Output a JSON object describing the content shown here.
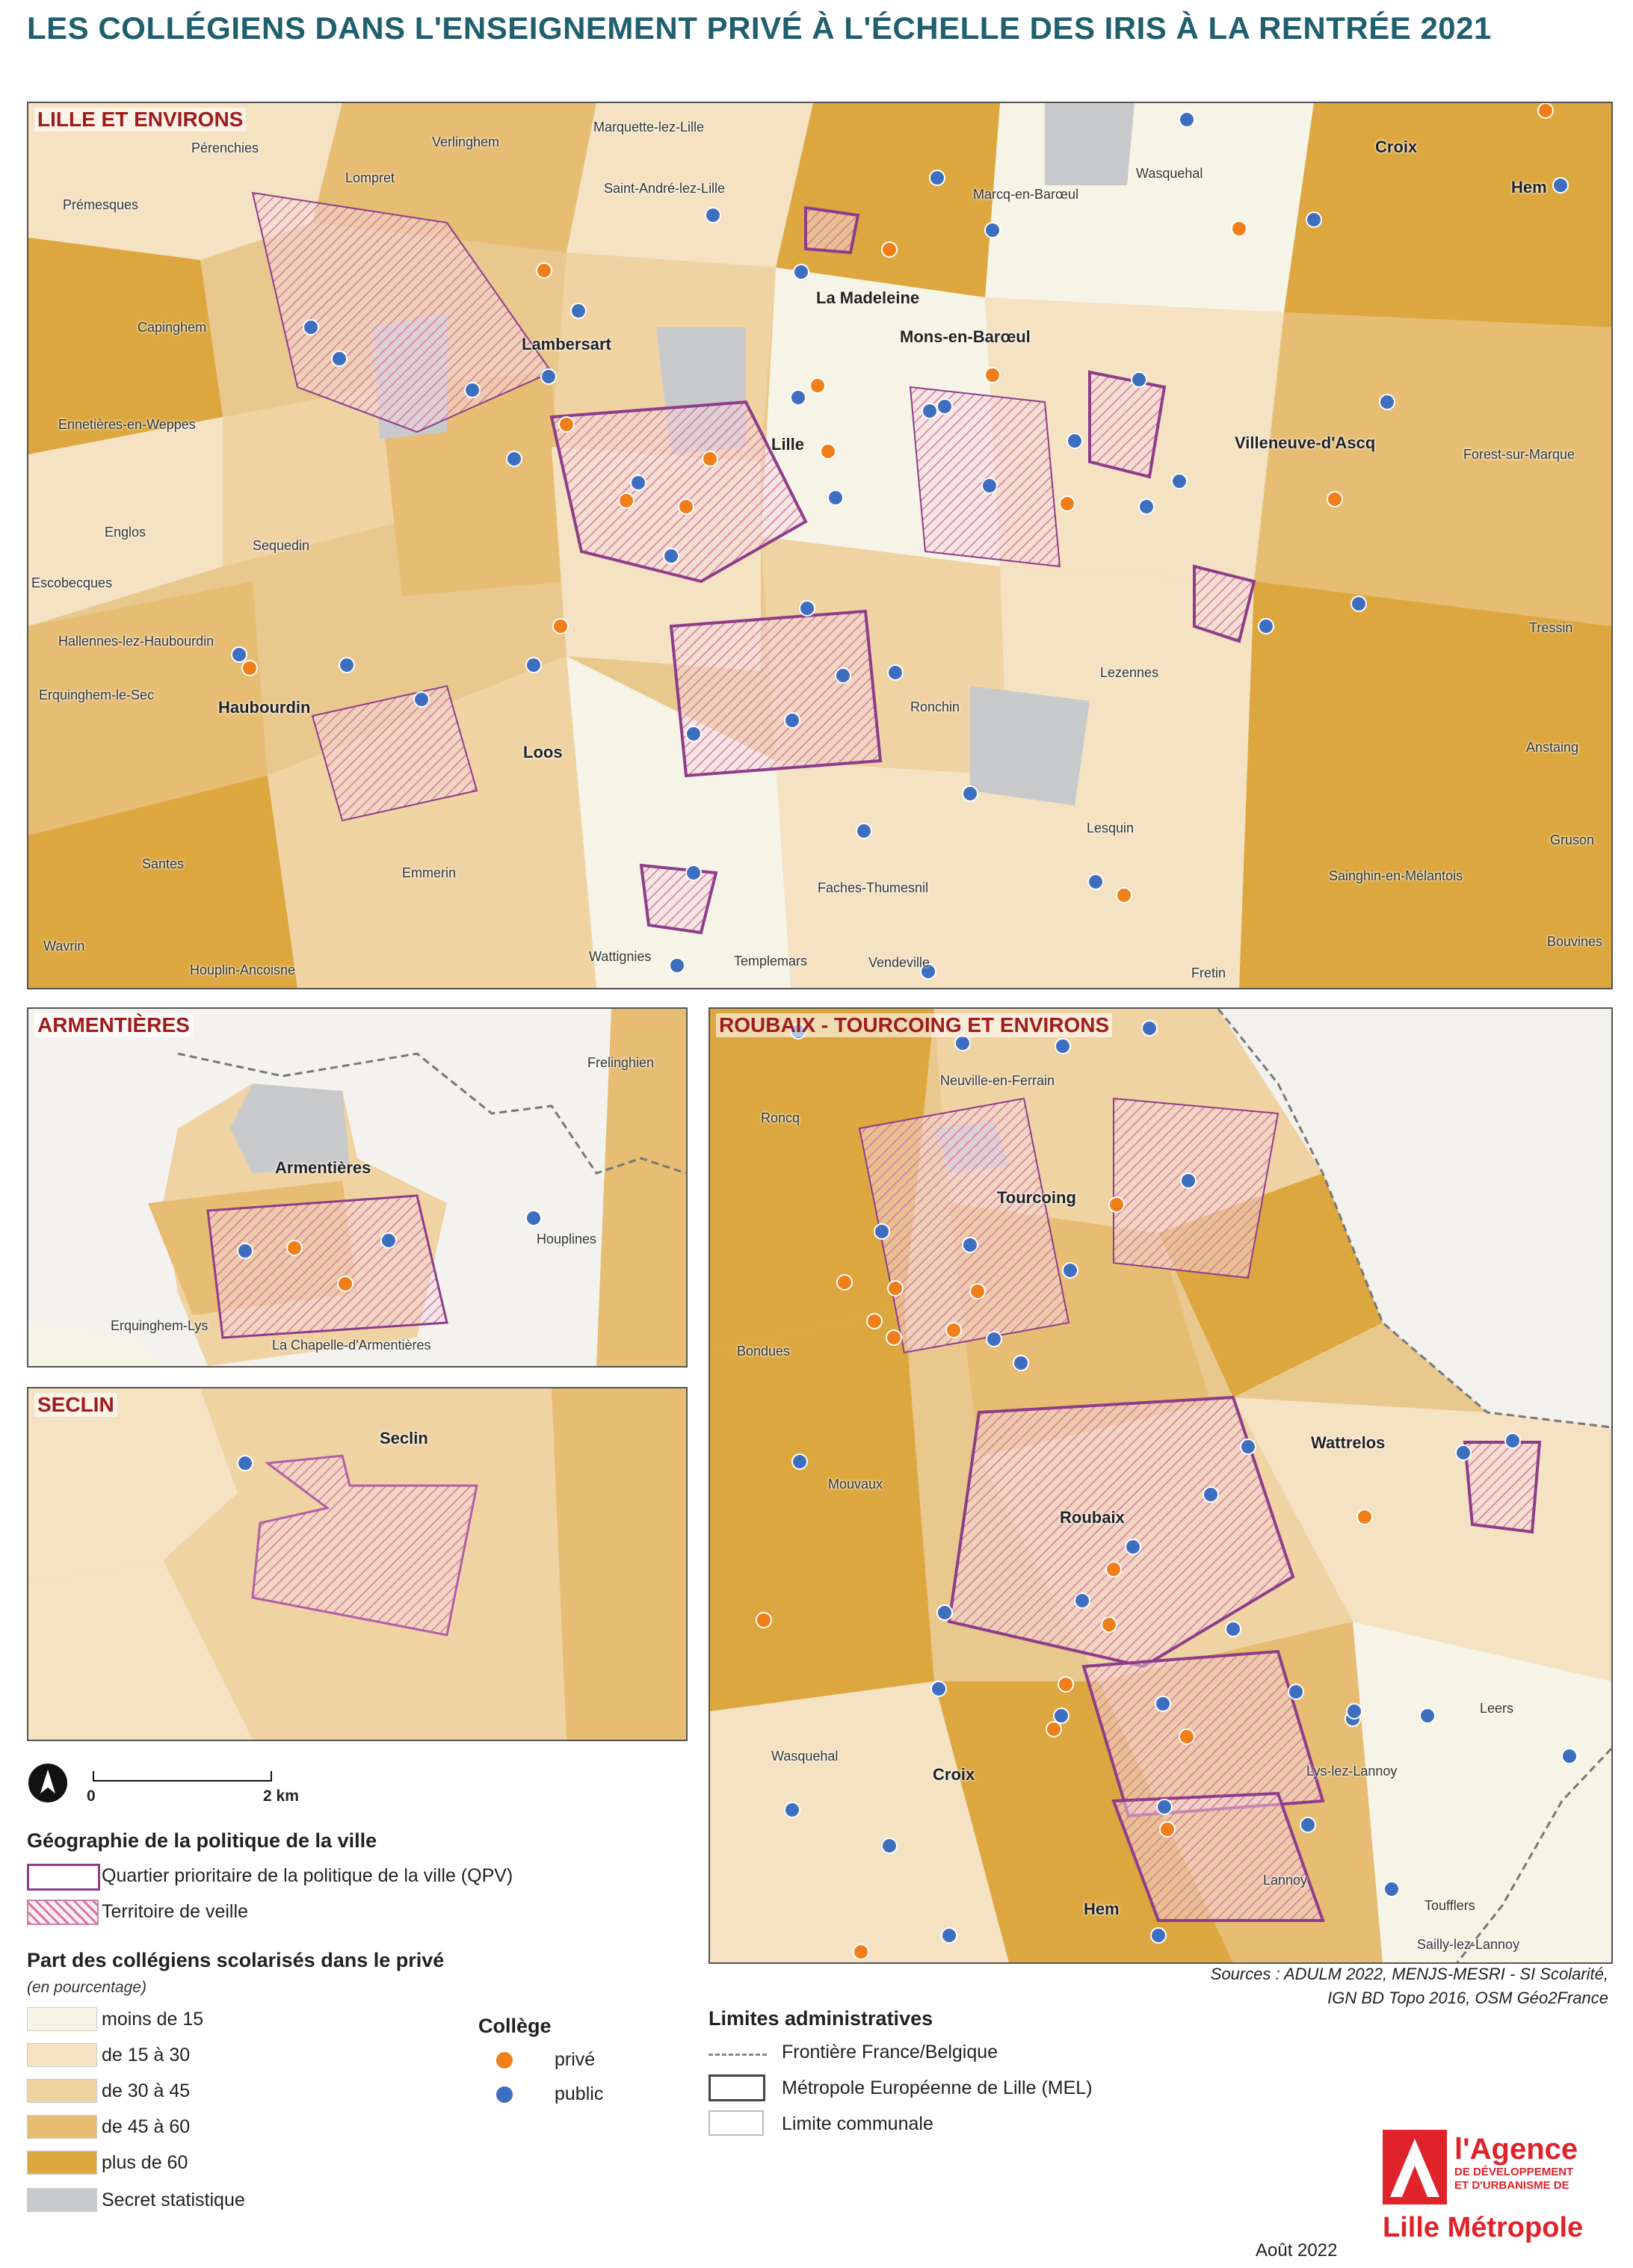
{
  "title": "LES COLLÉGIENS DANS L'ENSEIGNEMENT PRIVÉ À L'ÉCHELLE DES IRIS À LA RENTRÉE 2021",
  "colors": {
    "qpv_stroke": "#8e3d8a",
    "veille_hatch": "#d77aa0",
    "private_dot": "#f07f1a",
    "public_dot": "#3e6ec0",
    "class_1": "#f6f4e6",
    "class_2": "#f4e2c2",
    "class_3": "#efd3a3",
    "class_4": "#e6bd73",
    "class_5": "#dca73f",
    "class_secret": "#c8c9cb",
    "title": "#1f5f6e",
    "panel_title": "#a01c1c"
  },
  "panels": {
    "lille": {
      "title": "LILLE ET ENVIRONS",
      "places": [
        "Pérenchies",
        "Verlinghem",
        "Marquette-lez-Lille",
        "Prémesques",
        "Lompret",
        "Saint-André-lez-Lille",
        "Marcq-en-Barœul",
        "Wasquehal",
        "Croix",
        "Hem",
        "Capinghem",
        "Lambersart",
        "La Madeleine",
        "Mons-en-Barœul",
        "Ennetières-en-Weppes",
        "Lille",
        "Villeneuve-d'Ascq",
        "Forest-sur-Marque",
        "Englos",
        "Sequedin",
        "Escobecques",
        "Hallennes-lez-Haubourdin",
        "Tressin",
        "Erquinghem-le-Sec",
        "Haubourdin",
        "Lezennes",
        "Ronchin",
        "Loos",
        "Anstaing",
        "Lesquin",
        "Gruson",
        "Santes",
        "Emmerin",
        "Faches-Thumesnil",
        "Sainghin-en-Mélantois",
        "Wavrin",
        "Houplin-Ancoisne",
        "Wattignies",
        "Templemars",
        "Vendeville",
        "Fretin",
        "Bouvines"
      ]
    },
    "armentieres": {
      "title": "ARMENTIÈRES",
      "places": [
        "Frelinghien",
        "Armentières",
        "Houplines",
        "Erquinghem-Lys",
        "La Chapelle-d'Armentières"
      ]
    },
    "seclin": {
      "title": "SECLIN",
      "places": [
        "Seclin"
      ]
    },
    "roubaix": {
      "title": "ROUBAIX - TOURCOING ET ENVIRONS",
      "places": [
        "Neuville-en-Ferrain",
        "Roncq",
        "Tourcoing",
        "Bondues",
        "Wattrelos",
        "Mouvaux",
        "Roubaix",
        "Leers",
        "Wasquehal",
        "Croix",
        "Lys-lez-Lannoy",
        "Lannoy",
        "Toufflers",
        "Hem",
        "Sailly-lez-Lannoy"
      ]
    }
  },
  "scale": {
    "zero": "0",
    "end": "2 km"
  },
  "legend": {
    "politique": {
      "heading": "Géographie de la politique de la ville",
      "qpv": "Quartier prioritaire de la politique de la ville (QPV)",
      "veille": "Territoire de veille"
    },
    "part": {
      "heading": "Part des collégiens scolarisés dans le privé",
      "unit": "(en pourcentage)",
      "classes": [
        "moins de 15",
        "de 15 à 30",
        "de 30 à 45",
        "de 45 à 60",
        "plus de 60",
        "Secret statistique"
      ]
    },
    "college": {
      "heading": "Collège",
      "prive": "privé",
      "public": "public"
    },
    "limites": {
      "heading": "Limites administratives",
      "frontiere": "Frontière France/Belgique",
      "mel": "Métropole Européenne de Lille (MEL)",
      "communale": "Limite communale"
    }
  },
  "sources": {
    "line1": "Sources : ADULM 2022, MENJS-MESRI - SI Scolarité,",
    "line2": "IGN BD Topo 2016, OSM Géo2France"
  },
  "date": "Août 2022",
  "logo": {
    "line1": "l'Agence",
    "line2": "DE DÉVELOPPEMENT",
    "line3": "ET D'URBANISME DE",
    "line4": "Lille Métropole"
  }
}
